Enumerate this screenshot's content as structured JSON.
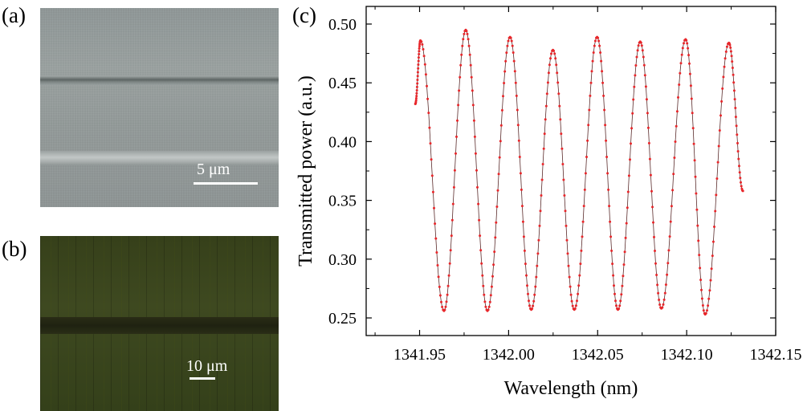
{
  "panels": {
    "a": {
      "label": "(a)",
      "scale_text": "5 μm"
    },
    "b": {
      "label": "(b)",
      "scale_text": "10 μm"
    },
    "c": {
      "label": "(c)"
    }
  },
  "colors": {
    "series": "#e8262a",
    "axis": "#000000"
  },
  "chart_data": {
    "type": "line",
    "xlabel": "Wavelength (nm)",
    "ylabel": "Transmitted power (a.u.)",
    "xlim": [
      1341.92,
      1342.15
    ],
    "ylim": [
      0.235,
      0.515
    ],
    "xticks": [
      1341.95,
      1342.0,
      1342.05,
      1342.1,
      1342.15
    ],
    "xtick_labels": [
      "1341.95",
      "1342.00",
      "1342.05",
      "1342.10",
      "1342.15"
    ],
    "yticks": [
      0.25,
      0.3,
      0.35,
      0.4,
      0.45,
      0.5
    ],
    "ytick_labels": [
      "0.25",
      "0.30",
      "0.35",
      "0.40",
      "0.45",
      "0.50"
    ],
    "grid": false,
    "legend": "none",
    "series": [
      {
        "start": [
          1341.9476,
          0.432
        ],
        "peaks": [
          [
            1341.9505,
            0.486
          ],
          [
            1341.9759,
            0.495
          ],
          [
            1342.0008,
            0.489
          ],
          [
            1342.0249,
            0.478
          ],
          [
            1342.0497,
            0.489
          ],
          [
            1342.0739,
            0.485
          ],
          [
            1342.0994,
            0.487
          ],
          [
            1342.1237,
            0.484
          ]
        ],
        "troughs": [
          [
            1341.9637,
            0.256
          ],
          [
            1341.9881,
            0.256
          ],
          [
            1342.0127,
            0.257
          ],
          [
            1342.0369,
            0.257
          ],
          [
            1342.0614,
            0.257
          ],
          [
            1342.0858,
            0.258
          ],
          [
            1342.1104,
            0.253
          ]
        ],
        "end": [
          1342.1316,
          0.358
        ]
      }
    ]
  }
}
